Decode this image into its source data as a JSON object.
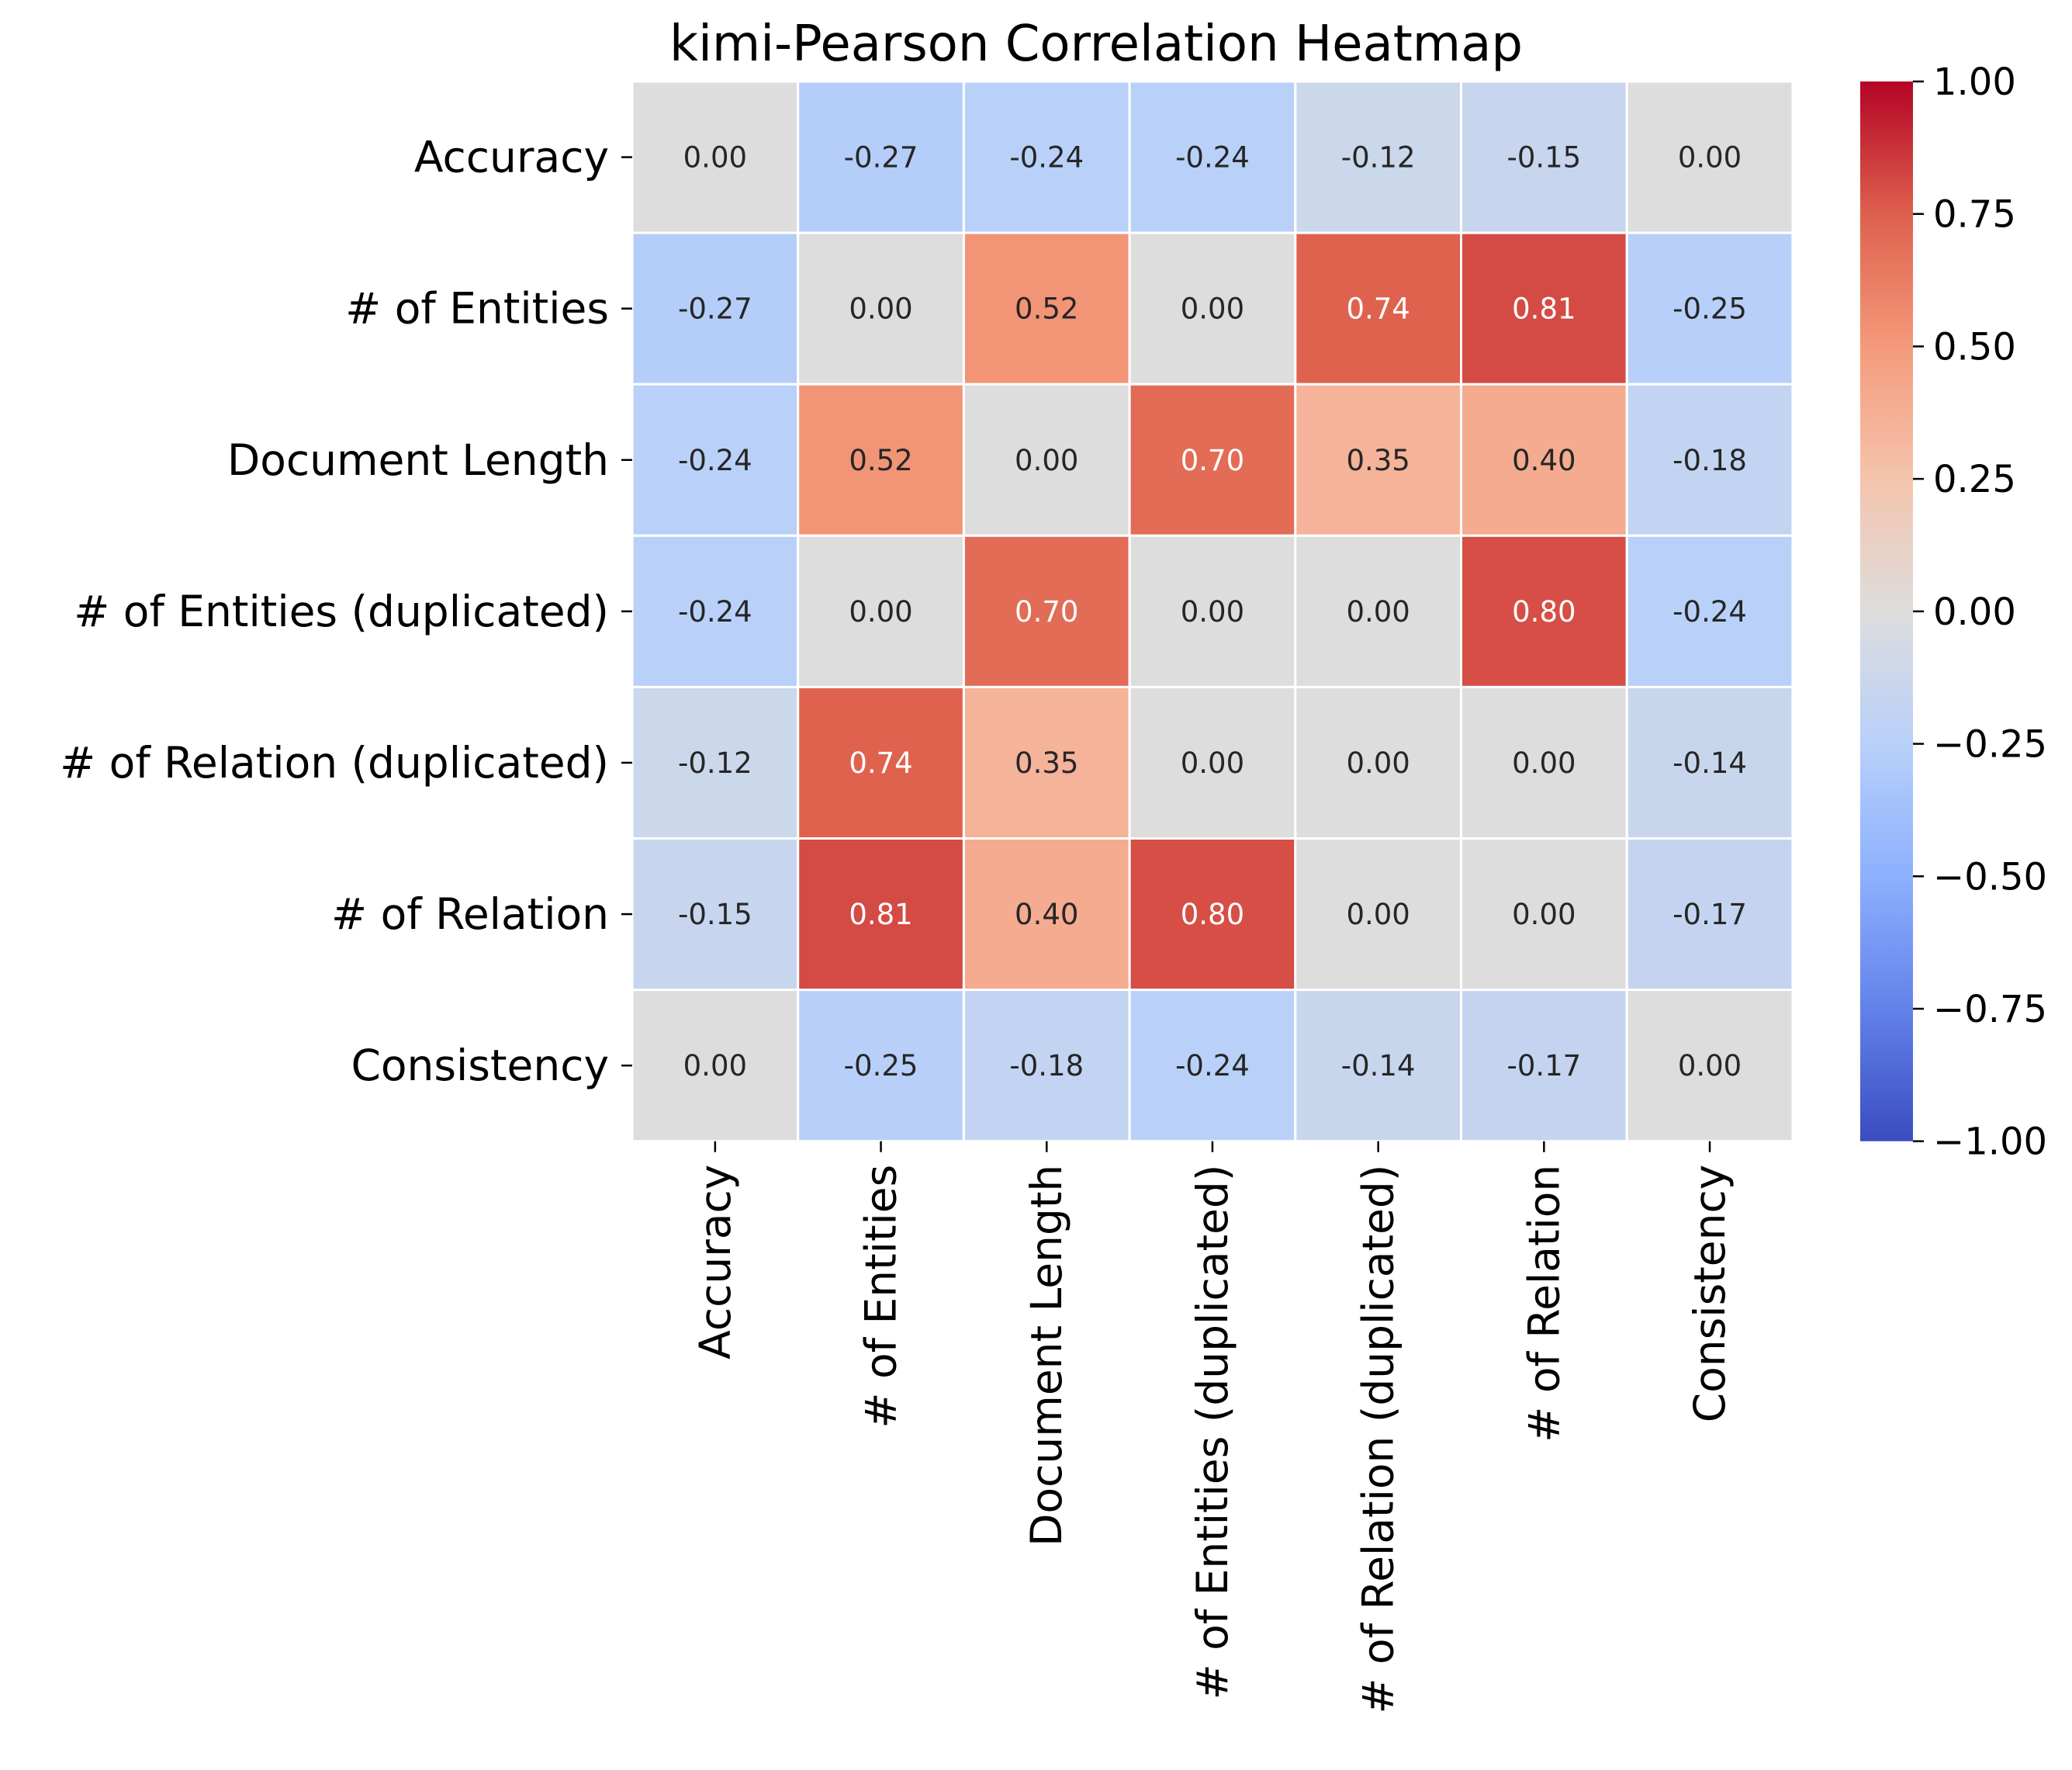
{
  "chart_data": {
    "type": "heatmap",
    "title": "kimi-Pearson Correlation Heatmap",
    "row_labels": [
      "Accuracy",
      "# of Entities",
      "Document Length",
      "# of Entities (duplicated)",
      "# of Relation (duplicated)",
      "# of Relation",
      "Consistency"
    ],
    "col_labels": [
      "Accuracy",
      "# of Entities",
      "Document Length",
      "# of Entities (duplicated)",
      "# of Relation (duplicated)",
      "# of Relation",
      "Consistency"
    ],
    "values": [
      [
        0.0,
        -0.27,
        -0.24,
        -0.24,
        -0.12,
        -0.15,
        0.0
      ],
      [
        -0.27,
        0.0,
        0.52,
        0.0,
        0.74,
        0.81,
        -0.25
      ],
      [
        -0.24,
        0.52,
        0.0,
        0.7,
        0.35,
        0.4,
        -0.18
      ],
      [
        -0.24,
        0.0,
        0.7,
        0.0,
        0.0,
        0.8,
        -0.24
      ],
      [
        -0.12,
        0.74,
        0.35,
        0.0,
        0.0,
        0.0,
        -0.14
      ],
      [
        -0.15,
        0.81,
        0.4,
        0.8,
        0.0,
        0.0,
        -0.17
      ],
      [
        0.0,
        -0.25,
        -0.18,
        -0.24,
        -0.14,
        -0.17,
        0.0
      ]
    ],
    "colormap": "coolwarm",
    "vmin": -1.0,
    "vmax": 1.0,
    "colorbar_ticks": [
      "1.00",
      "0.75",
      "0.50",
      "0.25",
      "0.00",
      "−0.25",
      "−0.50",
      "−0.75",
      "−1.00"
    ],
    "colorbar_tick_values": [
      1.0,
      0.75,
      0.5,
      0.25,
      0.0,
      -0.25,
      -0.5,
      -0.75,
      -1.0
    ],
    "colorbar_placement": "right",
    "grid": false,
    "cell_separator_color": "#ffffff"
  }
}
